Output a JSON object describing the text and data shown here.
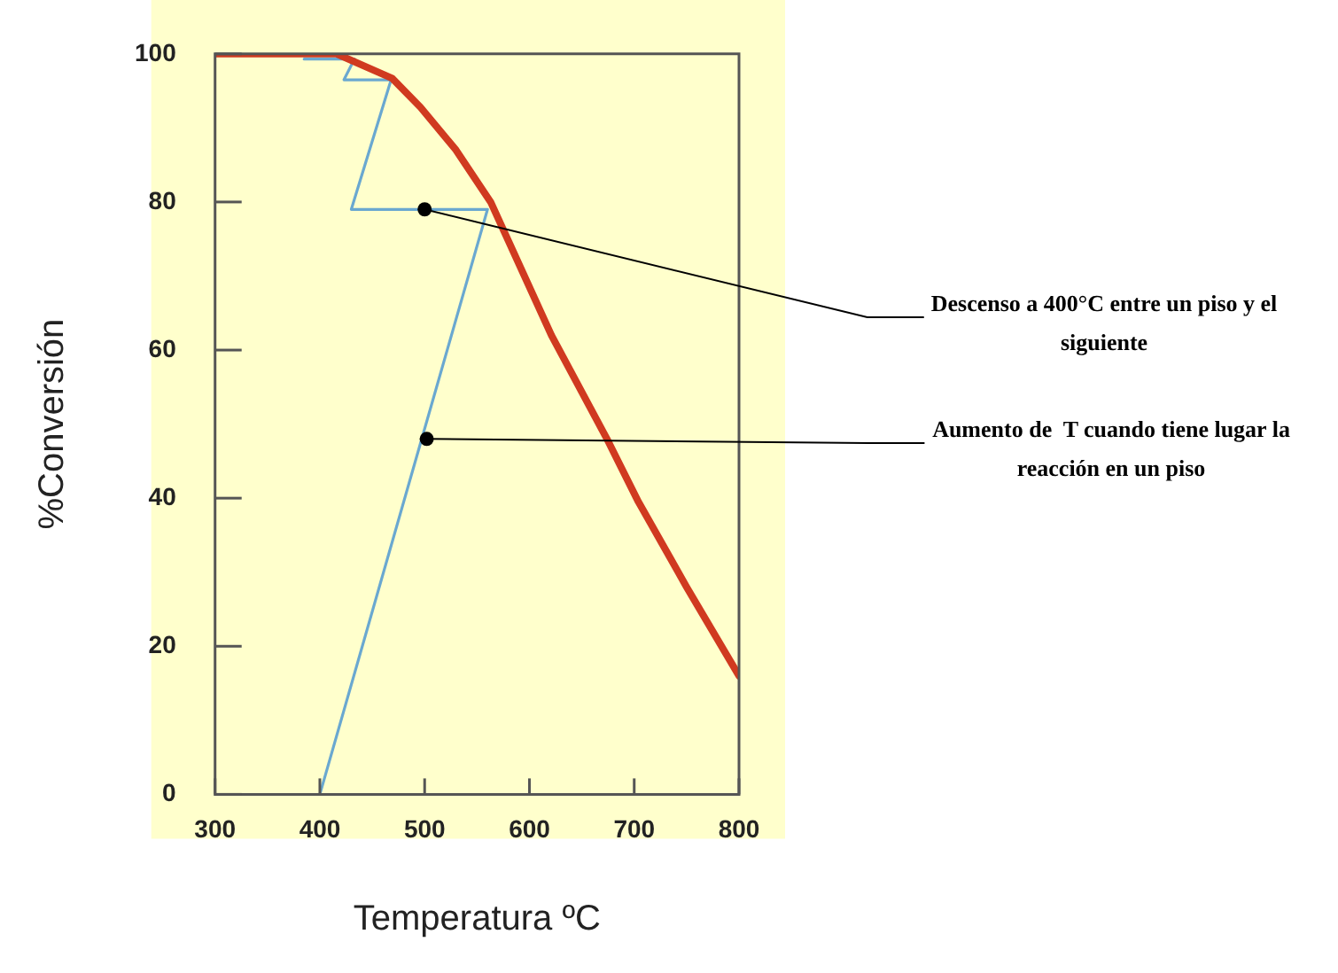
{
  "chart_data": {
    "type": "line",
    "xlabel": "Temperatura ºC",
    "ylabel": "%Conversión",
    "xlim": [
      300,
      800
    ],
    "xticks": [
      300,
      400,
      500,
      600,
      700,
      800
    ],
    "ylim": [
      0,
      100
    ],
    "yticks": [
      0,
      20,
      40,
      60,
      80,
      100
    ],
    "grid": false,
    "legend": false,
    "marker": "none",
    "line_style": "solid",
    "series": [
      {
        "color": "#d03a20",
        "x": [
          300,
          416,
          469,
          496,
          530,
          563,
          621,
          674,
          704,
          750,
          800
        ],
        "values": [
          100,
          100,
          96.7,
          92.8,
          87,
          80,
          62,
          48,
          39.5,
          28,
          16
        ]
      },
      {
        "color": "#6aa8d0",
        "x": [
          400,
          560,
          430,
          468,
          423,
          433,
          385
        ],
        "values": [
          0,
          79,
          79,
          96.5,
          96.5,
          99.3,
          99.3
        ]
      }
    ],
    "annotations": [
      {
        "text": "Descenso a 400°C entre un piso y el siguiente",
        "x": 500,
        "y": 79
      },
      {
        "text": "Aumento de  T cuando tiene lugar la reacción en un piso",
        "x": 502,
        "y": 48
      }
    ]
  }
}
